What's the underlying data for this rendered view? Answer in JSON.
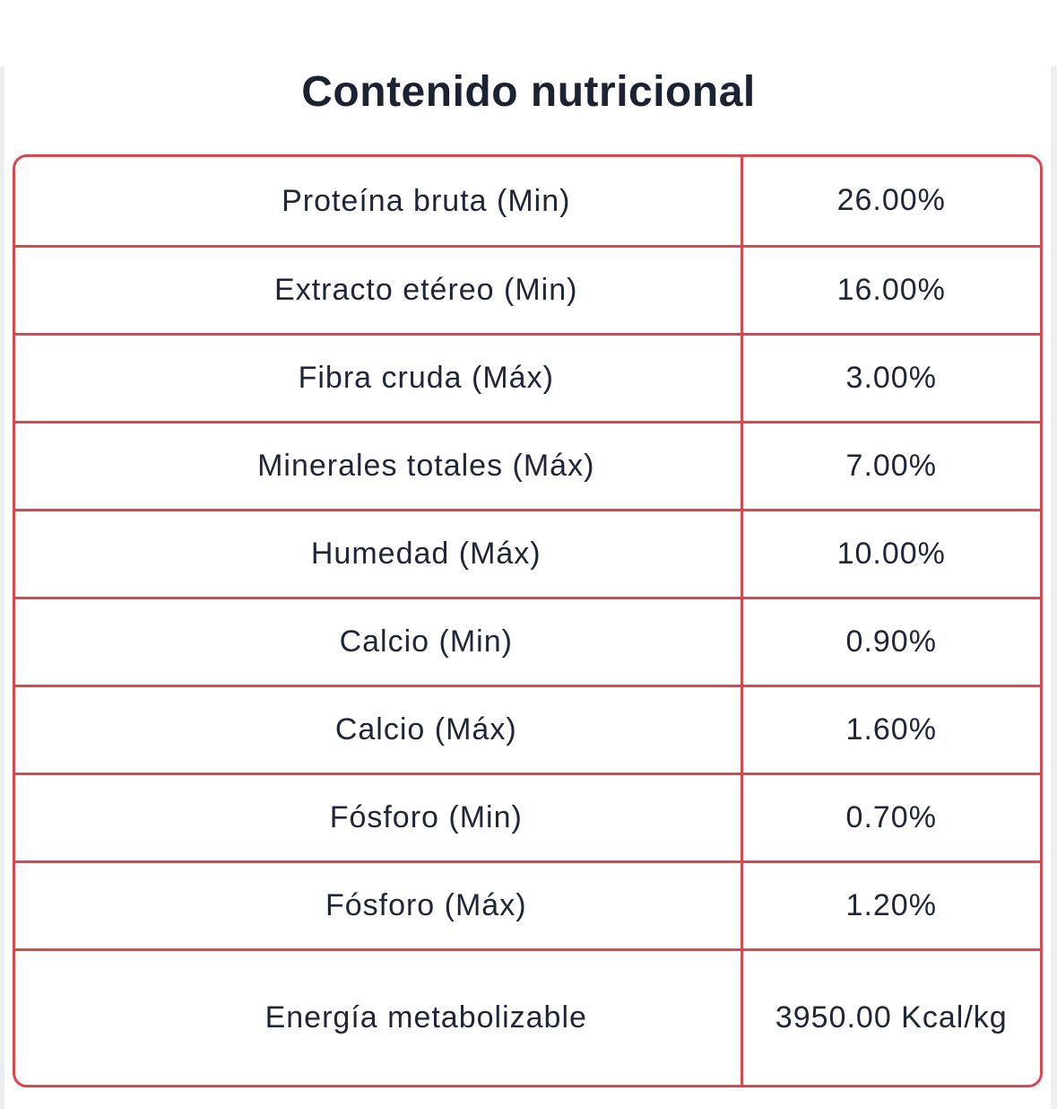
{
  "title": "Contenido nutricional",
  "table": {
    "rows": [
      {
        "label": "Proteína bruta (Min)",
        "value": "26.00%"
      },
      {
        "label": "Extracto etéreo (Min)",
        "value": "16.00%"
      },
      {
        "label": "Fibra cruda (Máx)",
        "value": "3.00%"
      },
      {
        "label": "Minerales totales (Máx)",
        "value": "7.00%"
      },
      {
        "label": "Humedad (Máx)",
        "value": "10.00%"
      },
      {
        "label": "Calcio (Min)",
        "value": "0.90%"
      },
      {
        "label": "Calcio (Máx)",
        "value": "1.60%"
      },
      {
        "label": "Fósforo (Min)",
        "value": "0.70%"
      },
      {
        "label": "Fósforo (Máx)",
        "value": "1.20%"
      },
      {
        "label": "Energía metabolizable",
        "value": "3950.00 Kcal/kg"
      }
    ]
  },
  "colors": {
    "table_border": "#d9474f",
    "text": "#1e2637",
    "title_text": "#1b2231",
    "background": "#ffffff"
  }
}
